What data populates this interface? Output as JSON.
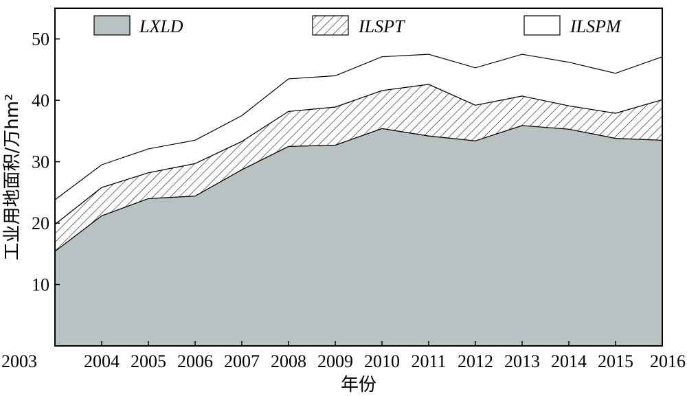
{
  "chart_data": {
    "type": "area",
    "stacked": true,
    "title": "",
    "xlabel": "年份",
    "ylabel": "工业用地面积/万hm²",
    "x": [
      "2003",
      "2004",
      "2005",
      "2006",
      "2007",
      "2008",
      "2009",
      "2010",
      "2011",
      "2012",
      "2013",
      "2014",
      "2015",
      "2016"
    ],
    "ylim": [
      0,
      55
    ],
    "yticks": [
      10,
      20,
      30,
      40,
      50
    ],
    "grid": false,
    "legend_position": "top",
    "series": [
      {
        "name": "LXLD",
        "fill": "gray",
        "color": "#b9c2c3",
        "values": [
          15.4,
          21.2,
          24.0,
          24.4,
          28.7,
          32.5,
          32.7,
          35.4,
          34.2,
          33.4,
          35.9,
          35.3,
          33.8,
          33.5
        ]
      },
      {
        "name": "ILSPT",
        "fill": "hatch",
        "color": "#ffffff",
        "values": [
          4.4,
          4.6,
          4.2,
          5.3,
          4.6,
          5.7,
          6.2,
          6.2,
          8.4,
          5.8,
          4.8,
          3.8,
          4.1,
          6.6
        ]
      },
      {
        "name": "ILSPM",
        "fill": "white",
        "color": "#ffffff",
        "values": [
          4.0,
          3.7,
          3.9,
          3.8,
          4.2,
          5.3,
          5.1,
          5.5,
          4.9,
          6.1,
          6.8,
          7.1,
          6.5,
          7.0
        ]
      }
    ]
  }
}
